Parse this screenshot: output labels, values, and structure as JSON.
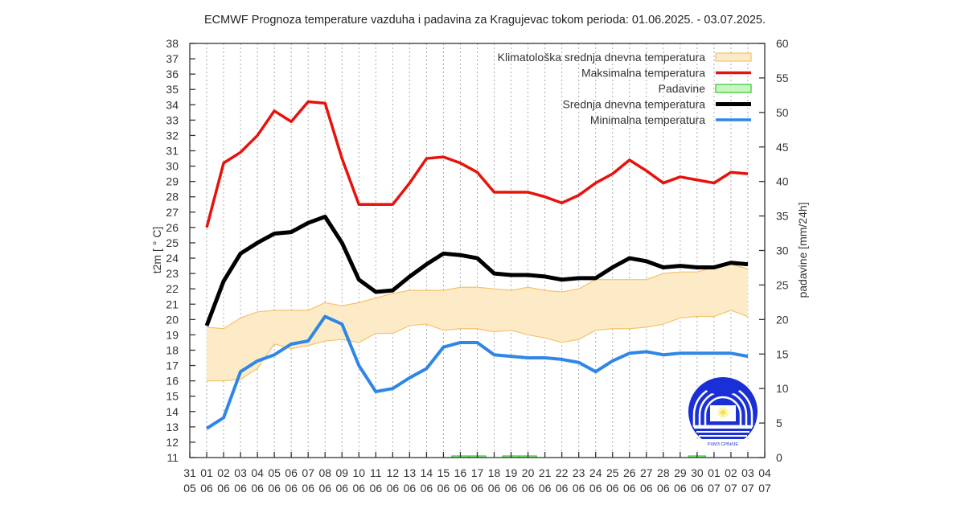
{
  "chart_data": {
    "type": "line",
    "title": "ECMWF Prognoza temperature vazduha i padavina za Kragujevac tokom perioda: 01.06.2025. - 03.07.2025.",
    "ylabel": "t2m [ ° C]",
    "y2label": "padavine [mm/24h]",
    "ylim": [
      11,
      38
    ],
    "y2lim": [
      0,
      60
    ],
    "yticks": [
      11,
      12,
      13,
      14,
      15,
      16,
      17,
      18,
      19,
      20,
      21,
      22,
      23,
      24,
      25,
      26,
      27,
      28,
      29,
      30,
      31,
      32,
      33,
      34,
      35,
      36,
      37,
      38
    ],
    "y2ticks": [
      0,
      5,
      10,
      15,
      20,
      25,
      30,
      35,
      40,
      45,
      50,
      55,
      60
    ],
    "grid": "vertical-dotted",
    "legend_position": "top-right",
    "xtick_labels": [
      [
        "31",
        "05"
      ],
      [
        "01",
        "06"
      ],
      [
        "02",
        "06"
      ],
      [
        "03",
        "06"
      ],
      [
        "04",
        "06"
      ],
      [
        "05",
        "06"
      ],
      [
        "06",
        "06"
      ],
      [
        "07",
        "06"
      ],
      [
        "08",
        "06"
      ],
      [
        "09",
        "06"
      ],
      [
        "10",
        "06"
      ],
      [
        "11",
        "06"
      ],
      [
        "12",
        "06"
      ],
      [
        "13",
        "06"
      ],
      [
        "14",
        "06"
      ],
      [
        "15",
        "06"
      ],
      [
        "16",
        "06"
      ],
      [
        "17",
        "06"
      ],
      [
        "18",
        "06"
      ],
      [
        "19",
        "06"
      ],
      [
        "20",
        "06"
      ],
      [
        "21",
        "06"
      ],
      [
        "22",
        "06"
      ],
      [
        "23",
        "06"
      ],
      [
        "24",
        "06"
      ],
      [
        "25",
        "06"
      ],
      [
        "26",
        "06"
      ],
      [
        "27",
        "06"
      ],
      [
        "28",
        "06"
      ],
      [
        "29",
        "06"
      ],
      [
        "30",
        "06"
      ],
      [
        "01",
        "07"
      ],
      [
        "02",
        "07"
      ],
      [
        "03",
        "07"
      ],
      [
        "04",
        "07"
      ]
    ],
    "x": [
      "01.06",
      "02.06",
      "03.06",
      "04.06",
      "05.06",
      "06.06",
      "07.06",
      "08.06",
      "09.06",
      "10.06",
      "11.06",
      "12.06",
      "13.06",
      "14.06",
      "15.06",
      "16.06",
      "17.06",
      "18.06",
      "19.06",
      "20.06",
      "21.06",
      "22.06",
      "23.06",
      "24.06",
      "25.06",
      "26.06",
      "27.06",
      "28.06",
      "29.06",
      "30.06",
      "01.07",
      "02.07",
      "03.07"
    ],
    "series": [
      {
        "name": "Klimatološka srednja dnevna temperatura",
        "kind": "band",
        "color": "#f5c26b",
        "fill": "#fdebc8",
        "upper": [
          19.5,
          19.4,
          20.1,
          20.5,
          20.6,
          20.6,
          20.6,
          21.1,
          20.9,
          21.1,
          21.4,
          21.7,
          21.9,
          21.9,
          21.9,
          22.1,
          22.1,
          22.0,
          21.9,
          22.1,
          21.9,
          21.8,
          22.0,
          22.6,
          22.6,
          22.6,
          22.6,
          23.0,
          23.1,
          23.1,
          23.4,
          23.6,
          23.3
        ],
        "lower": [
          16.0,
          16.0,
          16.1,
          16.8,
          18.4,
          18.1,
          18.3,
          18.6,
          18.7,
          18.5,
          19.1,
          19.1,
          19.6,
          19.7,
          19.3,
          19.4,
          19.4,
          19.2,
          19.3,
          19.0,
          18.8,
          18.5,
          18.7,
          19.3,
          19.4,
          19.4,
          19.5,
          19.7,
          20.1,
          20.2,
          20.2,
          20.6,
          20.2
        ]
      },
      {
        "name": "Maksimalna temperatura",
        "kind": "line",
        "color": "#e8120c",
        "values": [
          26.0,
          30.2,
          30.9,
          32.0,
          33.6,
          32.9,
          34.2,
          34.1,
          30.5,
          27.5,
          27.5,
          27.5,
          28.9,
          30.5,
          30.6,
          30.2,
          29.6,
          28.3,
          28.3,
          28.3,
          28.0,
          27.6,
          28.1,
          28.9,
          29.5,
          30.4,
          29.7,
          28.9,
          29.3,
          29.1,
          28.9,
          29.6,
          29.5
        ]
      },
      {
        "name": "Padavine",
        "kind": "bar",
        "axis": "y2",
        "color": "#2ecc2e",
        "fill": "#c9f5c0",
        "values": [
          0,
          0,
          0,
          0,
          0,
          0,
          0,
          0,
          0,
          0,
          0,
          0,
          0,
          0,
          0,
          0.2,
          0.2,
          0,
          0.2,
          0.2,
          0,
          0,
          0,
          0,
          0,
          0,
          0,
          0,
          0,
          0.2,
          0,
          0,
          0
        ]
      },
      {
        "name": "Srednja dnevna temperatura",
        "kind": "line",
        "color": "#000000",
        "values": [
          19.6,
          22.5,
          24.3,
          25.0,
          25.6,
          25.7,
          26.3,
          26.7,
          25.0,
          22.6,
          21.8,
          21.9,
          22.8,
          23.6,
          24.3,
          24.2,
          24.0,
          23.0,
          22.9,
          22.9,
          22.8,
          22.6,
          22.7,
          22.7,
          23.4,
          24.0,
          23.8,
          23.4,
          23.5,
          23.4,
          23.4,
          23.7,
          23.6
        ]
      },
      {
        "name": "Minimalna temperatura",
        "kind": "line",
        "color": "#2f86e6",
        "values": [
          12.9,
          13.6,
          16.6,
          17.3,
          17.7,
          18.4,
          18.6,
          20.2,
          19.7,
          17.0,
          15.3,
          15.5,
          16.2,
          16.8,
          18.2,
          18.5,
          18.5,
          17.7,
          17.6,
          17.5,
          17.5,
          17.4,
          17.2,
          16.6,
          17.3,
          17.8,
          17.9,
          17.7,
          17.8,
          17.8,
          17.8,
          17.8,
          17.6
        ]
      }
    ],
    "logo": {
      "name": "RHMZ Srbije logo",
      "caption": "РХМЗ СРБИЈЕ",
      "color": "#1a2fd6"
    }
  }
}
